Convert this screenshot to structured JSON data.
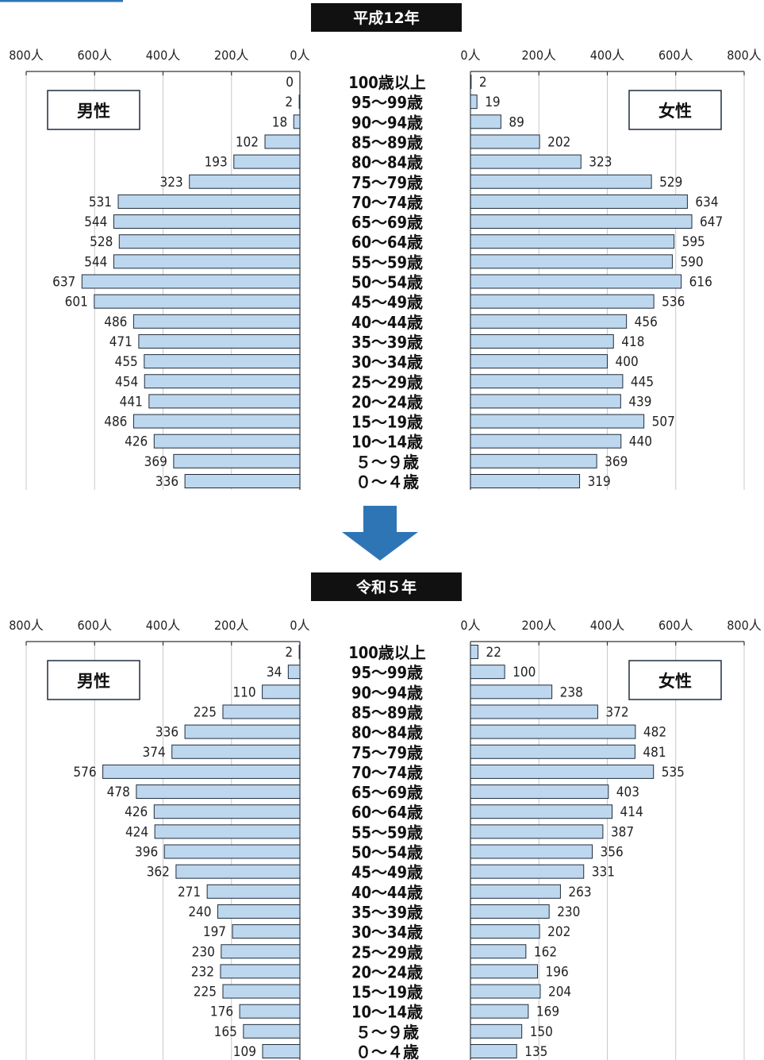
{
  "arrow_color": "#2e75b6",
  "bar_color": "#bdd7ee",
  "title_bg": "#111111",
  "chart_data": [
    {
      "type": "bar",
      "title": "平成12年",
      "male_label": "男性",
      "female_label": "女性",
      "male_ticks": [
        "800人",
        "600人",
        "400人",
        "200人",
        "0人"
      ],
      "female_ticks": [
        "0人",
        "200人",
        "400人",
        "600人",
        "800人"
      ],
      "categories": [
        "100歳以上",
        "95～99歳",
        "90～94歳",
        "85～89歳",
        "80～84歳",
        "75～79歳",
        "70～74歳",
        "65～69歳",
        "60～64歳",
        "55～59歳",
        "50～54歳",
        "45～49歳",
        "40～44歳",
        "35～39歳",
        "30～34歳",
        "25～29歳",
        "20～24歳",
        "15～19歳",
        "10～14歳",
        "５～９歳",
        "０～４歳"
      ],
      "xlim": [
        0,
        800
      ],
      "series": [
        {
          "name": "男性",
          "values": [
            0,
            2,
            18,
            102,
            193,
            323,
            531,
            544,
            528,
            544,
            637,
            601,
            486,
            471,
            455,
            454,
            441,
            486,
            426,
            369,
            336
          ]
        },
        {
          "name": "女性",
          "values": [
            2,
            19,
            89,
            202,
            323,
            529,
            634,
            647,
            595,
            590,
            616,
            536,
            456,
            418,
            400,
            445,
            439,
            507,
            440,
            369,
            319
          ]
        }
      ]
    },
    {
      "type": "bar",
      "title": "令和５年",
      "male_label": "男性",
      "female_label": "女性",
      "male_ticks": [
        "800人",
        "600人",
        "400人",
        "200人",
        "0人"
      ],
      "female_ticks": [
        "0人",
        "200人",
        "400人",
        "600人",
        "800人"
      ],
      "categories": [
        "100歳以上",
        "95～99歳",
        "90～94歳",
        "85～89歳",
        "80～84歳",
        "75～79歳",
        "70～74歳",
        "65～69歳",
        "60～64歳",
        "55～59歳",
        "50～54歳",
        "45～49歳",
        "40～44歳",
        "35～39歳",
        "30～34歳",
        "25～29歳",
        "20～24歳",
        "15～19歳",
        "10～14歳",
        "５～９歳",
        "０～４歳"
      ],
      "xlim": [
        0,
        800
      ],
      "series": [
        {
          "name": "男性",
          "values": [
            2,
            34,
            110,
            225,
            336,
            374,
            576,
            478,
            426,
            424,
            396,
            362,
            271,
            240,
            197,
            230,
            232,
            225,
            176,
            165,
            109
          ]
        },
        {
          "name": "女性",
          "values": [
            22,
            100,
            238,
            372,
            482,
            481,
            535,
            403,
            414,
            387,
            356,
            331,
            263,
            230,
            202,
            162,
            196,
            204,
            169,
            150,
            135
          ]
        }
      ]
    }
  ]
}
